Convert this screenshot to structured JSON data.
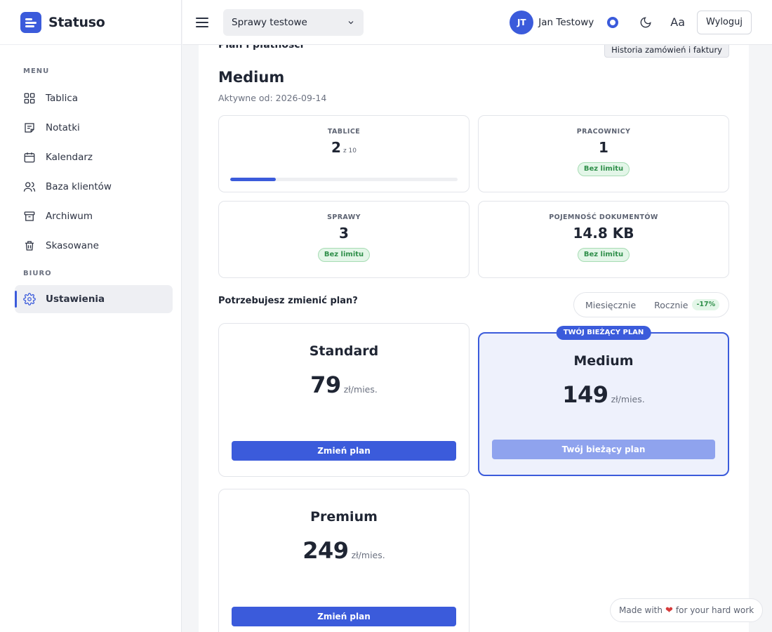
{
  "brand": {
    "name": "Statuso"
  },
  "sidebar": {
    "menu_label": "MENU",
    "office_label": "BIURO",
    "items": [
      {
        "label": "Tablica",
        "icon": "grid-icon"
      },
      {
        "label": "Notatki",
        "icon": "note-icon"
      },
      {
        "label": "Kalendarz",
        "icon": "calendar-icon"
      },
      {
        "label": "Baza klientów",
        "icon": "users-icon"
      },
      {
        "label": "Archiwum",
        "icon": "archive-icon"
      },
      {
        "label": "Skasowane",
        "icon": "trash-icon"
      }
    ],
    "office_items": [
      {
        "label": "Ustawienia",
        "icon": "gear-icon",
        "active": true
      }
    ]
  },
  "topbar": {
    "case_select": "Sprawy testowe",
    "avatar_initials": "JT",
    "user_name": "Jan Testowy",
    "font_toggle": "Aa",
    "logout": "Wyloguj"
  },
  "plan": {
    "section_title": "Plan i płatności",
    "history_button": "Historia zamówień i faktury",
    "current_name": "Medium",
    "active_since": "Aktywne od: 2026-09-14"
  },
  "stats": {
    "boards": {
      "label": "TABLICE",
      "value": "2",
      "sub": "z 10",
      "progress": 0.2
    },
    "workers": {
      "label": "PRACOWNICY",
      "value": "1",
      "badge": "Bez limitu"
    },
    "cases": {
      "label": "SPRAWY",
      "value": "3",
      "badge": "Bez limitu"
    },
    "storage": {
      "label": "POJEMNOŚĆ DOKUMENTÓW",
      "value": "14.8 KB",
      "badge": "Bez limitu"
    }
  },
  "change": {
    "question": "Potrzebujesz zmienić plan?",
    "monthly": "Miesięcznie",
    "yearly": "Rocznie",
    "discount": "-17%"
  },
  "plans": {
    "standard": {
      "name": "Standard",
      "price": "79",
      "unit": "zł/mies.",
      "button": "Zmień plan"
    },
    "medium": {
      "name": "Medium",
      "price": "149",
      "unit": "zł/mies.",
      "button": "Twój bieżący plan",
      "tag": "TWÓJ BIEŻĄCY PLAN"
    },
    "premium": {
      "name": "Premium",
      "price": "249",
      "unit": "zł/mies.",
      "button": "Zmień plan"
    }
  },
  "footer": {
    "made_prefix": "Made with",
    "made_suffix": "for your hard work"
  },
  "colors": {
    "accent": "#3b5bdb",
    "success": "#2f8f4a",
    "current_bg": "#eef1fc"
  }
}
